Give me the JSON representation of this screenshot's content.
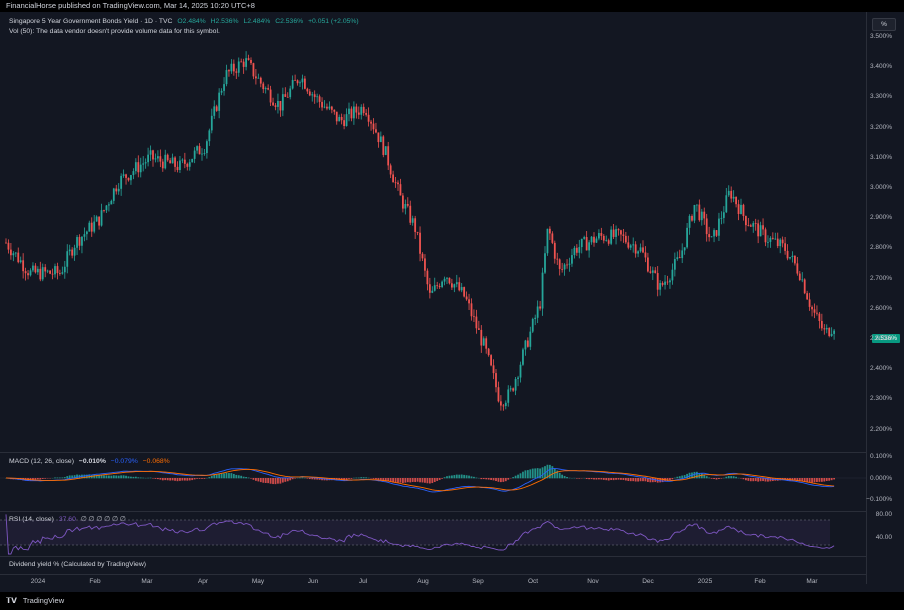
{
  "header": {
    "published_text": "FinancialHorse published on TradingView.com, Mar 14, 2025 10:20 UTC+8"
  },
  "main_legend": {
    "symbol": "Singapore 5 Year Government Bonds Yield · 1D · TVC",
    "open": "O2.484%",
    "high": "H2.536%",
    "low": "L2.484%",
    "close": "C2.536%",
    "change": "+0.051 (+2.05%)",
    "volume_note": "Vol (50): The data vendor doesn't provide volume data for this symbol."
  },
  "price_scale": {
    "unit_button": "%",
    "ticks": [
      "3.500%",
      "3.400%",
      "3.300%",
      "3.200%",
      "3.100%",
      "3.000%",
      "2.900%",
      "2.800%",
      "2.700%",
      "2.600%",
      "2.500%",
      "2.400%",
      "2.300%",
      "2.200%"
    ],
    "last_price_badge": "2.536%"
  },
  "macd": {
    "label": "MACD (12, 26, close)",
    "histogram_value": "−0.010%",
    "macd_value": "−0.079%",
    "signal_value": "−0.068%",
    "ticks": [
      "0.100%",
      "0.000%",
      "−0.100%"
    ]
  },
  "rsi": {
    "label": "RSI (14, close)",
    "value": "37.60",
    "extra": "∅ ∅ ∅ ∅ ∅ ∅",
    "ticks": [
      "80.00",
      "40.00"
    ]
  },
  "dividend": {
    "label": "Dividend yield % (Calculated by TradingView)"
  },
  "time_axis": {
    "labels": [
      "2024",
      "Feb",
      "Mar",
      "Apr",
      "May",
      "Jun",
      "Jul",
      "Aug",
      "Sep",
      "Oct",
      "Nov",
      "Dec",
      "2025",
      "Feb",
      "Mar"
    ]
  },
  "footer": {
    "brand": "TradingView"
  },
  "colors": {
    "background": "#131722",
    "up": "#26a69a",
    "down": "#ef5350",
    "macd_line": "#2962ff",
    "signal_line": "#ff6d00",
    "rsi_line": "#7e57c2",
    "rsi_band": "#7e57c2"
  },
  "chart_data": {
    "type": "candlestick",
    "title": "Singapore 5 Year Government Bonds Yield · 1D · TVC",
    "ylim": [
      2.15,
      3.52
    ],
    "monthly_closes": [
      {
        "month": "2024",
        "close": 2.7
      },
      {
        "month": "Feb",
        "close": 2.85
      },
      {
        "month": "Mar",
        "close": 3.08
      },
      {
        "month": "Apr",
        "close": 3.38
      },
      {
        "month": "May",
        "close": 3.32
      },
      {
        "month": "Jun",
        "close": 3.2
      },
      {
        "month": "Jul",
        "close": 2.95
      },
      {
        "month": "Aug",
        "close": 2.55
      },
      {
        "month": "Sep",
        "close": 2.5
      },
      {
        "month": "Oct",
        "close": 2.75
      },
      {
        "month": "Nov",
        "close": 2.78
      },
      {
        "month": "Dec",
        "close": 2.72
      },
      {
        "month": "2025",
        "close": 2.95
      },
      {
        "month": "Feb",
        "close": 2.8
      },
      {
        "month": "Mar",
        "close": 2.536
      }
    ],
    "last": {
      "open": 2.484,
      "high": 2.536,
      "low": 2.484,
      "close": 2.536
    }
  }
}
